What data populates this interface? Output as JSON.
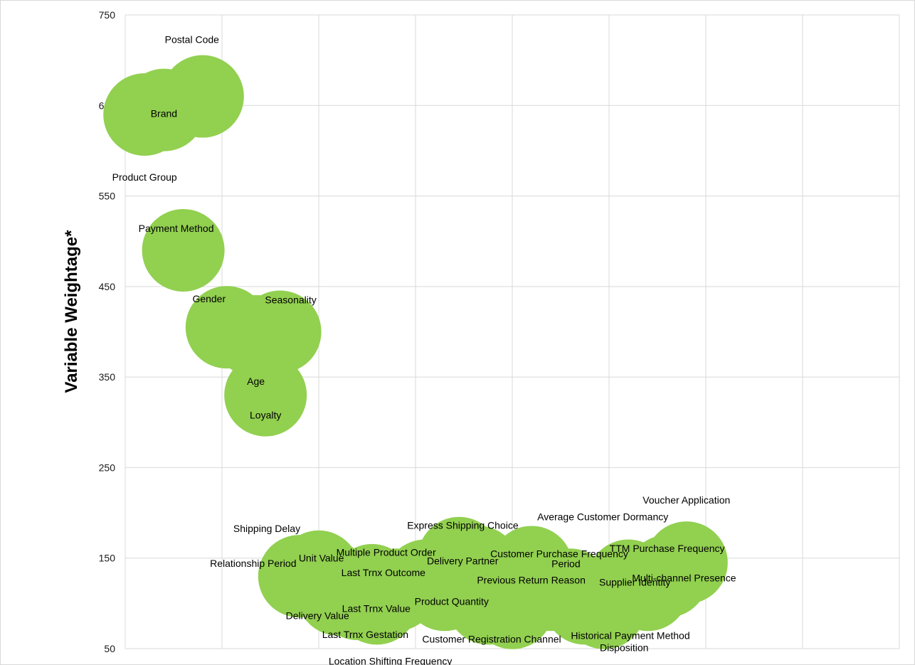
{
  "chart_data": {
    "type": "bubble",
    "ylabel": "Variable Weightage*",
    "xlabel": "",
    "ylim": [
      50,
      750
    ],
    "y_ticks": [
      50,
      150,
      250,
      350,
      450,
      550,
      650,
      750
    ],
    "xlim": [
      0,
      8
    ],
    "x_gridlines": 7,
    "grid": true,
    "bubble_color": "#92d050",
    "points": [
      {
        "label": "Product Group",
        "x": 0.2,
        "y": 640,
        "size": 1
      },
      {
        "label": "Brand",
        "x": 0.4,
        "y": 645,
        "size": 1
      },
      {
        "label": "Postal Code",
        "x": 0.8,
        "y": 660,
        "size": 1
      },
      {
        "label": "Payment Method",
        "x": 0.6,
        "y": 490,
        "size": 1
      },
      {
        "label": "Gender",
        "x": 1.05,
        "y": 405,
        "size": 1
      },
      {
        "label": "Age",
        "x": 1.35,
        "y": 395,
        "size": 1
      },
      {
        "label": "Seasonality",
        "x": 1.6,
        "y": 400,
        "size": 1
      },
      {
        "label": "Loyalty",
        "x": 1.45,
        "y": 330,
        "size": 1
      },
      {
        "label": "Relationship Period",
        "x": 1.8,
        "y": 130,
        "size": 1
      },
      {
        "label": "Shipping Delay",
        "x": 2.0,
        "y": 135,
        "size": 1
      },
      {
        "label": "Unit Value",
        "x": 2.1,
        "y": 125,
        "size": 1
      },
      {
        "label": "Delivery Value",
        "x": 2.2,
        "y": 110,
        "size": 1
      },
      {
        "label": "Last Trnx Gestation",
        "x": 2.4,
        "y": 105,
        "size": 1
      },
      {
        "label": "Last Trnx Outcome",
        "x": 2.55,
        "y": 120,
        "size": 1
      },
      {
        "label": "Location Shifting Frequency",
        "x": 2.6,
        "y": 100,
        "size": 1
      },
      {
        "label": "Last Trnx Value",
        "x": 2.8,
        "y": 115,
        "size": 1
      },
      {
        "label": "Multiple Product Order",
        "x": 3.1,
        "y": 125,
        "size": 1
      },
      {
        "label": "Product Quantity",
        "x": 3.3,
        "y": 115,
        "size": 1
      },
      {
        "label": "Delivery Partner",
        "x": 3.45,
        "y": 150,
        "size": 1
      },
      {
        "label": "Express Shipping Choice",
        "x": 3.65,
        "y": 140,
        "size": 1
      },
      {
        "label": "Customer Registration Channel",
        "x": 3.75,
        "y": 100,
        "size": 1
      },
      {
        "label": "Customer Purchase Frequency",
        "x": 4.0,
        "y": 95,
        "size": 1
      },
      {
        "label": "Average Customer Dormancy",
        "x": 4.2,
        "y": 140,
        "size": 1
      },
      {
        "label": "Period",
        "x": 4.4,
        "y": 115,
        "size": 1
      },
      {
        "label": "Previous Return Reason",
        "x": 4.6,
        "y": 115,
        "size": 1
      },
      {
        "label": "Historical Payment Method",
        "x": 4.75,
        "y": 100,
        "size": 1
      },
      {
        "label": "Disposition",
        "x": 4.95,
        "y": 95,
        "size": 1
      },
      {
        "label": "Supplier Identity",
        "x": 5.2,
        "y": 125,
        "size": 1
      },
      {
        "label": "Multi-channel Presence",
        "x": 5.4,
        "y": 115,
        "size": 1
      },
      {
        "label": "TTM Purchase Frequency",
        "x": 5.6,
        "y": 130,
        "size": 1
      },
      {
        "label": "Voucher Application",
        "x": 5.8,
        "y": 145,
        "size": 1
      }
    ]
  }
}
